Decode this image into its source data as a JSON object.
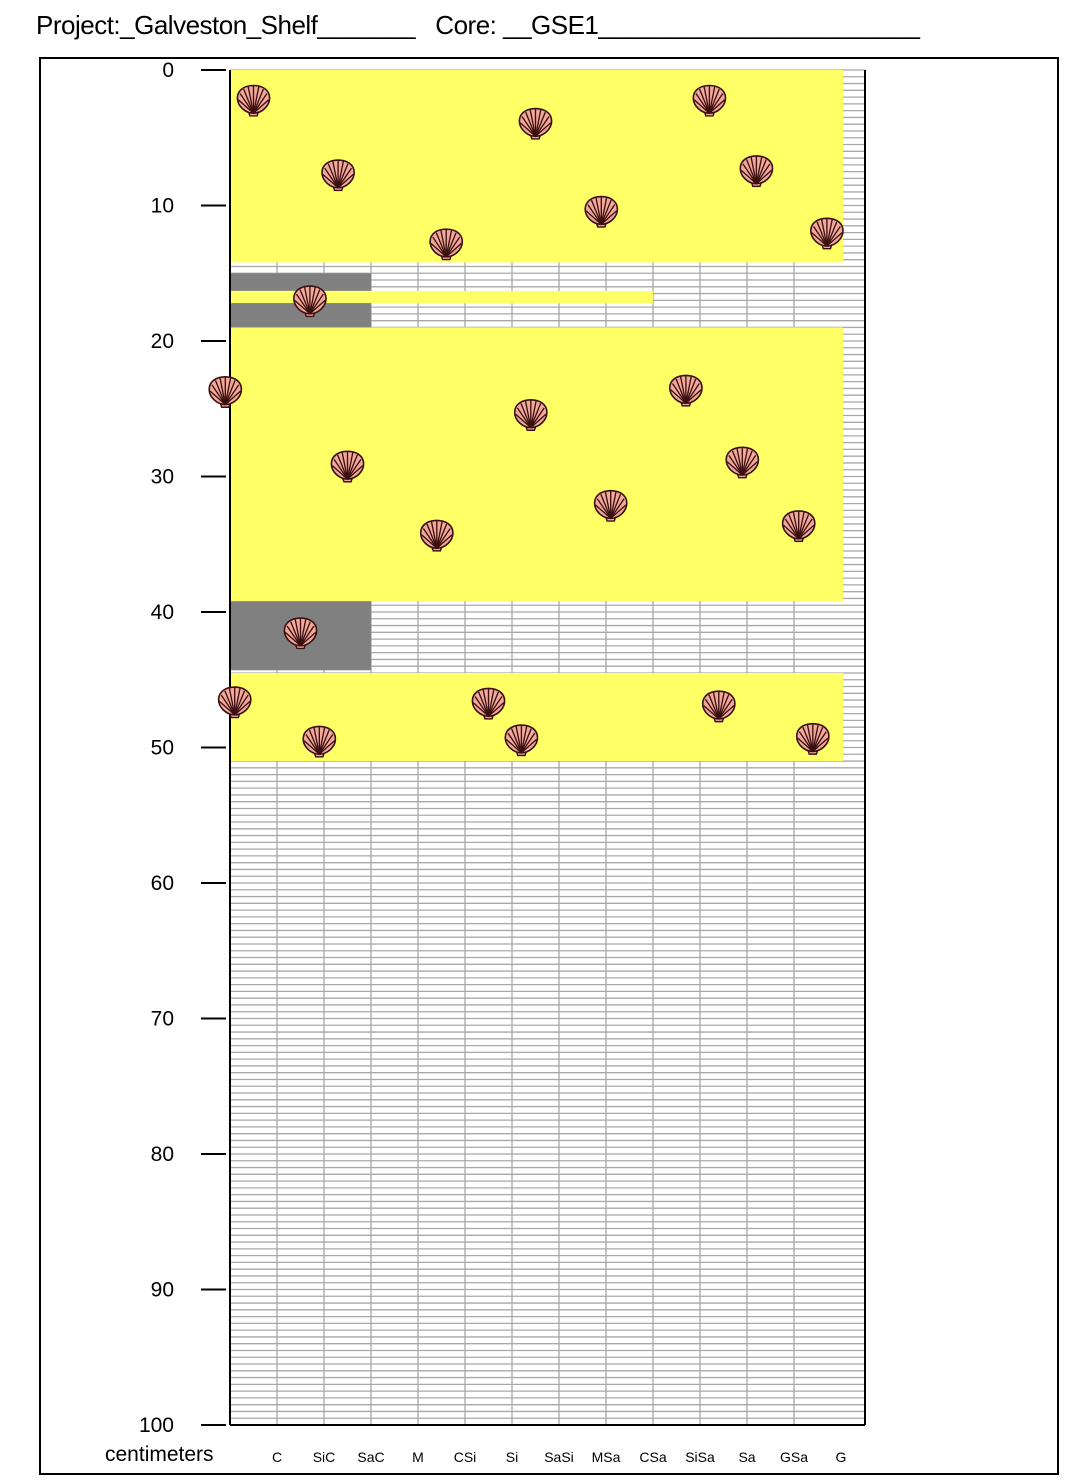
{
  "header": {
    "project_label": "Project:",
    "project_value": "_Galveston_Shelf_______",
    "core_label": "Core:",
    "core_value": "__GSE1_______________________"
  },
  "depth_axis": {
    "unit_label": "centimeters",
    "min": 0,
    "max": 100,
    "major_ticks": [
      "0",
      "10",
      "20",
      "30",
      "40",
      "50",
      "60",
      "70",
      "80",
      "90",
      "100"
    ]
  },
  "grain_size_columns": [
    "C",
    "SiC",
    "SaC",
    "M",
    "CSi",
    "Si",
    "SaSi",
    "MSa",
    "CSa",
    "SiSa",
    "Sa",
    "GSa",
    "G"
  ],
  "colors": {
    "sand": "#ffff66",
    "mud": "#808080",
    "grid": "#a8a8a8",
    "shell_fill": "#f2a89a",
    "shell_stroke": "#3a1010"
  },
  "legend_icons": {
    "shell": "scallop-shell-icon"
  },
  "layers": [
    {
      "name": "sand-layer-1",
      "lithology": "sand",
      "top": 0,
      "bottom": 14.2,
      "grain_extent": "G",
      "shells": [
        [
          0.5,
          2.2
        ],
        [
          6.5,
          3.9
        ],
        [
          10.2,
          2.2
        ],
        [
          2.3,
          7.7
        ],
        [
          7.9,
          10.4
        ],
        [
          11.2,
          7.4
        ],
        [
          12.7,
          12
        ],
        [
          4.6,
          12.8
        ]
      ]
    },
    {
      "name": "mud-layer-1",
      "lithology": "mud",
      "top": 15,
      "bottom": 19,
      "grain_extent": "M",
      "shells": [
        [
          1.7,
          17
        ]
      ]
    },
    {
      "name": "sand-lamina",
      "lithology": "sand",
      "top": 16.3,
      "bottom": 17.2,
      "grain_extent": "SiSa",
      "shells": []
    },
    {
      "name": "sand-layer-2",
      "lithology": "sand",
      "top": 19,
      "bottom": 39.2,
      "grain_extent": "G",
      "shells": [
        [
          -0.1,
          23.7
        ],
        [
          6.4,
          25.4
        ],
        [
          9.7,
          23.6
        ],
        [
          2.5,
          29.2
        ],
        [
          8.1,
          32.1
        ],
        [
          10.9,
          28.9
        ],
        [
          12.1,
          33.6
        ],
        [
          4.4,
          34.3
        ]
      ]
    },
    {
      "name": "mud-layer-2",
      "lithology": "mud",
      "top": 39.2,
      "bottom": 44.3,
      "grain_extent": "M",
      "shells": [
        [
          1.5,
          41.5
        ]
      ]
    },
    {
      "name": "sand-layer-3",
      "lithology": "sand",
      "top": 44.5,
      "bottom": 51,
      "grain_extent": "G",
      "shells": [
        [
          0.1,
          46.6
        ],
        [
          5.5,
          46.7
        ],
        [
          10.4,
          46.9
        ],
        [
          1.9,
          49.5
        ],
        [
          6.2,
          49.4
        ],
        [
          12.4,
          49.3
        ]
      ]
    }
  ]
}
